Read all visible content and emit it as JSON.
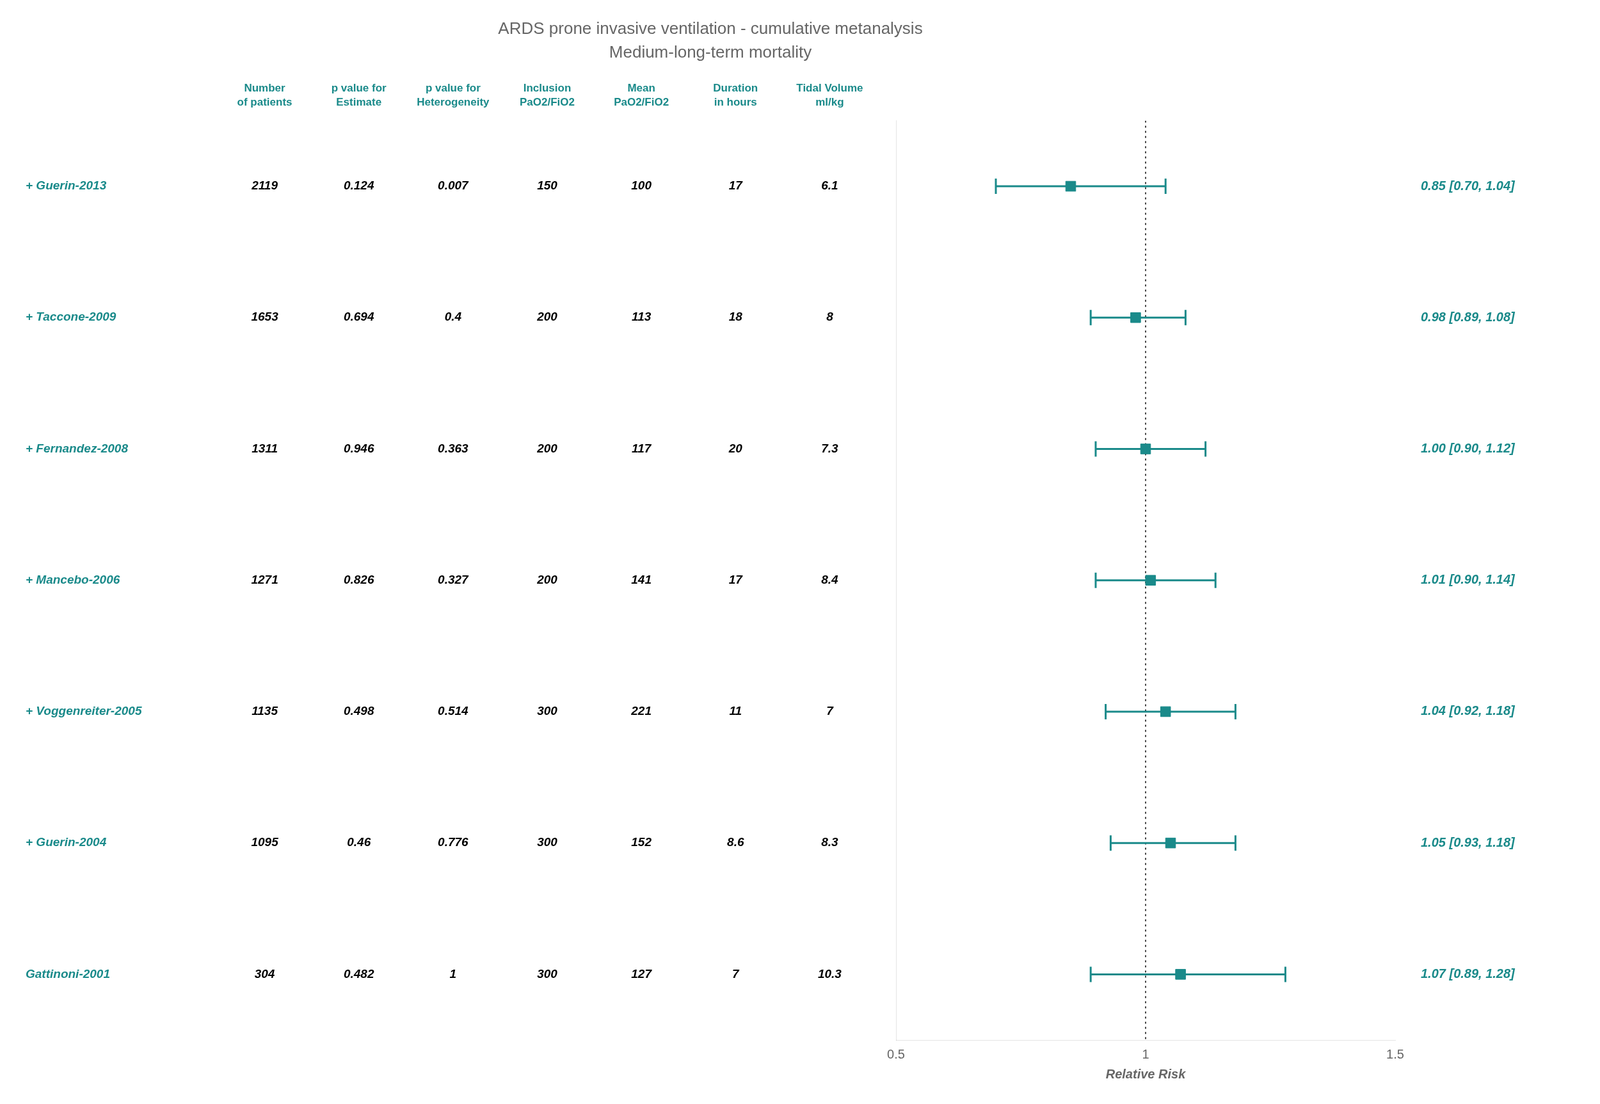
{
  "chart_data": {
    "type": "forest",
    "title": "ARDS prone invasive ventilation - cumulative metanalysis",
    "subtitle": "Medium-long-term mortality",
    "x_label": "Relative Risk",
    "categories": [
      "Gattinoni-2001",
      "+ Guerin-2004",
      "+ Voggenreiter-2005",
      "+ Mancebo-2006",
      "+ Fernandez-2008",
      "+ Taccone-2009",
      "+ Guerin-2013"
    ],
    "values": [
      1.07,
      1.05,
      1.04,
      1.01,
      1.0,
      0.98,
      0.85
    ],
    "lower": [
      0.89,
      0.93,
      0.92,
      0.9,
      0.9,
      0.89,
      0.7
    ],
    "upper": [
      1.28,
      1.18,
      1.18,
      1.14,
      1.12,
      1.08,
      1.04
    ],
    "value_labels": [
      "1.07 [0.89, 1.28]",
      "1.05 [0.93, 1.18]",
      "1.04 [0.92, 1.18]",
      "1.01 [0.90, 1.14]",
      "1.00 [0.90, 1.12]",
      "0.98 [0.89, 1.08]",
      "0.85 [0.70, 1.04]"
    ],
    "data_labels": true,
    "reference_line": 1,
    "table": [
      {
        "name": "Number\nof patients",
        "values": [
          "304",
          "1095",
          "1135",
          "1271",
          "1311",
          "1653",
          "2119"
        ]
      },
      {
        "name": "p value for\nEstimate",
        "values": [
          "0.482",
          "0.46",
          "0.498",
          "0.826",
          "0.946",
          "0.694",
          "0.124"
        ]
      },
      {
        "name": "p value for\nHeterogeneity",
        "values": [
          "1",
          "0.776",
          "0.514",
          "0.327",
          "0.363",
          "0.4",
          "0.007"
        ]
      },
      {
        "name": "Inclusion\nPaO2/FiO2",
        "values": [
          "300",
          "300",
          "300",
          "200",
          "200",
          "200",
          "150"
        ]
      },
      {
        "name": "Mean\nPaO2/FiO2",
        "values": [
          "127",
          "152",
          "221",
          "141",
          "117",
          "113",
          "100"
        ]
      },
      {
        "name": "Duration\nin hours",
        "values": [
          "7",
          "8.6",
          "11",
          "17",
          "20",
          "18",
          "17"
        ]
      },
      {
        "name": "Tidal Volume\nml/kg",
        "values": [
          "10.3",
          "8.3",
          "7",
          "8.4",
          "7.3",
          "8",
          "6.1"
        ]
      }
    ],
    "color": "#1a8a8a",
    "xlim": [
      0.5,
      1.5
    ],
    "xticks": [
      0.5,
      1,
      1.5
    ],
    "grid": false
  }
}
